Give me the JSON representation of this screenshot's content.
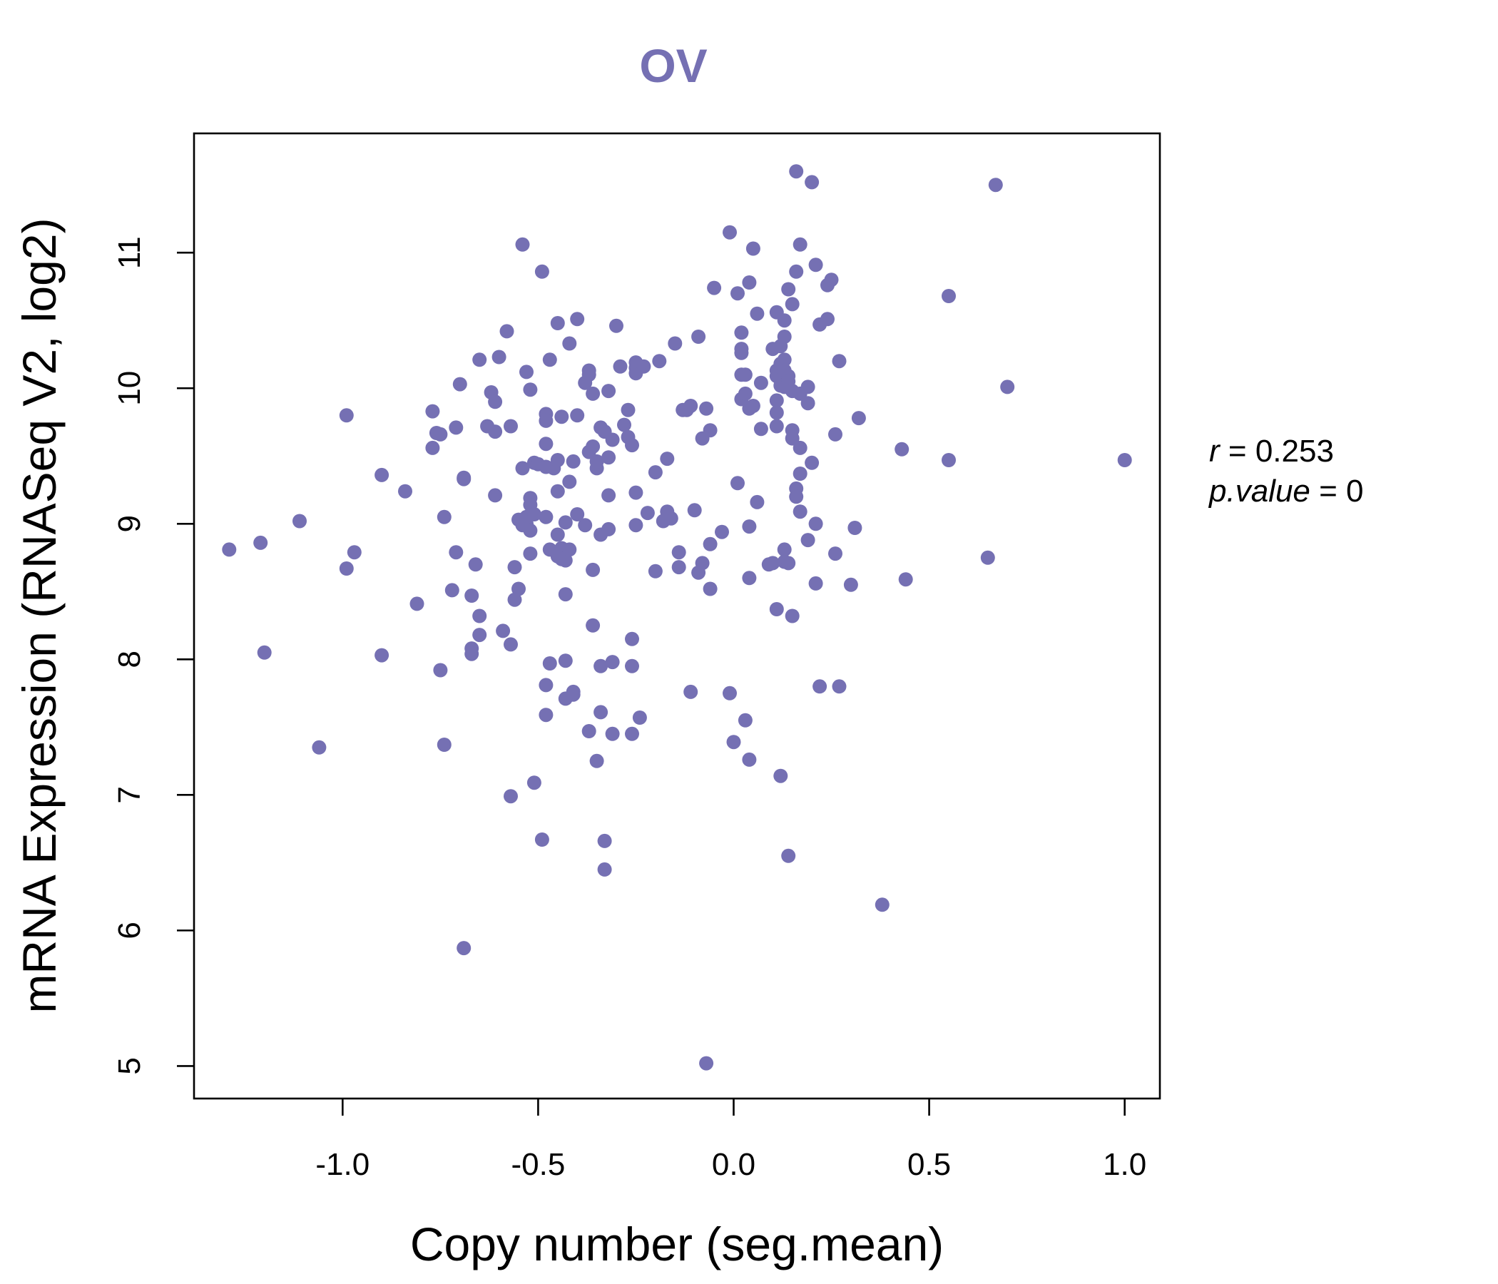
{
  "chart_data": {
    "type": "scatter",
    "title": "OV",
    "xlabel": "Copy number (seg.mean)",
    "ylabel": "mRNA Expression (RNASeq V2, log2)",
    "xlim": [
      -1.38,
      1.09
    ],
    "ylim": [
      4.76,
      11.88
    ],
    "xticks": [
      -1.0,
      -0.5,
      0.0,
      0.5,
      1.0
    ],
    "xtick_labels": [
      "-1.0",
      "-0.5",
      "0.0",
      "0.5",
      "1.0"
    ],
    "yticks": [
      5,
      6,
      7,
      8,
      9,
      10,
      11
    ],
    "ytick_labels": [
      "5",
      "6",
      "7",
      "8",
      "9",
      "10",
      "11"
    ],
    "grid": false,
    "legend": "none",
    "point_color": "#7570b3",
    "stats": {
      "r_symbol": "r",
      "r_value": "0.253",
      "p_symbol": "p.value",
      "p_value": "0"
    },
    "points": [
      [
        -1.29,
        8.81
      ],
      [
        -1.21,
        8.86
      ],
      [
        -1.2,
        8.05
      ],
      [
        -1.11,
        9.02
      ],
      [
        -1.06,
        7.35
      ],
      [
        -0.99,
        8.67
      ],
      [
        -0.99,
        9.8
      ],
      [
        -0.97,
        8.79
      ],
      [
        -0.9,
        9.36
      ],
      [
        -0.9,
        8.03
      ],
      [
        -0.84,
        9.24
      ],
      [
        -0.81,
        8.41
      ],
      [
        -0.77,
        9.83
      ],
      [
        -0.77,
        9.56
      ],
      [
        -0.76,
        9.67
      ],
      [
        -0.75,
        7.92
      ],
      [
        -0.75,
        9.66
      ],
      [
        -0.74,
        9.05
      ],
      [
        -0.74,
        7.37
      ],
      [
        -0.72,
        8.51
      ],
      [
        -0.71,
        9.71
      ],
      [
        -0.71,
        8.79
      ],
      [
        -0.7,
        10.03
      ],
      [
        -0.69,
        9.33
      ],
      [
        -0.69,
        9.34
      ],
      [
        -0.69,
        5.87
      ],
      [
        -0.67,
        8.47
      ],
      [
        -0.67,
        8.04
      ],
      [
        -0.67,
        8.08
      ],
      [
        -0.66,
        8.7
      ],
      [
        -0.65,
        8.18
      ],
      [
        -0.65,
        8.32
      ],
      [
        -0.65,
        10.21
      ],
      [
        -0.63,
        9.72
      ],
      [
        -0.62,
        9.97
      ],
      [
        -0.61,
        9.68
      ],
      [
        -0.61,
        9.21
      ],
      [
        -0.61,
        9.9
      ],
      [
        -0.6,
        10.23
      ],
      [
        -0.59,
        8.21
      ],
      [
        -0.58,
        10.42
      ],
      [
        -0.57,
        6.99
      ],
      [
        -0.57,
        8.11
      ],
      [
        -0.57,
        9.72
      ],
      [
        -0.56,
        8.68
      ],
      [
        -0.56,
        8.44
      ],
      [
        -0.55,
        8.52
      ],
      [
        -0.55,
        9.03
      ],
      [
        -0.54,
        11.06
      ],
      [
        -0.54,
        9.41
      ],
      [
        -0.54,
        8.99
      ],
      [
        -0.53,
        9.0
      ],
      [
        -0.53,
        9.05
      ],
      [
        -0.53,
        10.12
      ],
      [
        -0.52,
        8.78
      ],
      [
        -0.52,
        9.99
      ],
      [
        -0.52,
        8.95
      ],
      [
        -0.52,
        9.19
      ],
      [
        -0.52,
        9.14
      ],
      [
        -0.51,
        9.45
      ],
      [
        -0.51,
        9.07
      ],
      [
        -0.51,
        7.09
      ],
      [
        -0.5,
        9.44
      ],
      [
        -0.49,
        6.67
      ],
      [
        -0.49,
        10.86
      ],
      [
        -0.48,
        9.59
      ],
      [
        -0.48,
        9.81
      ],
      [
        -0.48,
        9.76
      ],
      [
        -0.48,
        9.42
      ],
      [
        -0.48,
        7.81
      ],
      [
        -0.48,
        7.59
      ],
      [
        -0.48,
        9.05
      ],
      [
        -0.47,
        10.21
      ],
      [
        -0.47,
        8.81
      ],
      [
        -0.47,
        7.97
      ],
      [
        -0.46,
        9.41
      ],
      [
        -0.45,
        10.48
      ],
      [
        -0.45,
        9.24
      ],
      [
        -0.45,
        8.92
      ],
      [
        -0.45,
        8.76
      ],
      [
        -0.45,
        9.47
      ],
      [
        -0.44,
        9.79
      ],
      [
        -0.44,
        8.82
      ],
      [
        -0.44,
        8.74
      ],
      [
        -0.43,
        9.01
      ],
      [
        -0.43,
        7.99
      ],
      [
        -0.43,
        7.71
      ],
      [
        -0.43,
        8.48
      ],
      [
        -0.43,
        8.73
      ],
      [
        -0.42,
        10.33
      ],
      [
        -0.42,
        9.31
      ],
      [
        -0.42,
        8.81
      ],
      [
        -0.41,
        9.46
      ],
      [
        -0.41,
        7.74
      ],
      [
        -0.41,
        7.76
      ],
      [
        -0.4,
        9.8
      ],
      [
        -0.4,
        9.07
      ],
      [
        -0.4,
        10.51
      ],
      [
        -0.38,
        10.04
      ],
      [
        -0.38,
        8.99
      ],
      [
        -0.37,
        10.13
      ],
      [
        -0.37,
        10.1
      ],
      [
        -0.37,
        9.53
      ],
      [
        -0.37,
        7.47
      ],
      [
        -0.36,
        8.25
      ],
      [
        -0.36,
        8.66
      ],
      [
        -0.36,
        9.96
      ],
      [
        -0.36,
        9.57
      ],
      [
        -0.35,
        7.25
      ],
      [
        -0.35,
        9.41
      ],
      [
        -0.35,
        9.46
      ],
      [
        -0.34,
        9.71
      ],
      [
        -0.34,
        8.92
      ],
      [
        -0.34,
        7.95
      ],
      [
        -0.34,
        7.61
      ],
      [
        -0.33,
        9.68
      ],
      [
        -0.33,
        6.45
      ],
      [
        -0.33,
        6.66
      ],
      [
        -0.32,
        9.98
      ],
      [
        -0.32,
        9.49
      ],
      [
        -0.32,
        9.21
      ],
      [
        -0.32,
        8.96
      ],
      [
        -0.31,
        9.62
      ],
      [
        -0.31,
        7.98
      ],
      [
        -0.31,
        7.45
      ],
      [
        -0.3,
        10.46
      ],
      [
        -0.29,
        10.16
      ],
      [
        -0.28,
        9.73
      ],
      [
        -0.27,
        9.84
      ],
      [
        -0.27,
        9.64
      ],
      [
        -0.26,
        9.58
      ],
      [
        -0.26,
        8.15
      ],
      [
        -0.26,
        7.95
      ],
      [
        -0.26,
        7.45
      ],
      [
        -0.25,
        10.15
      ],
      [
        -0.25,
        10.19
      ],
      [
        -0.25,
        10.11
      ],
      [
        -0.25,
        9.23
      ],
      [
        -0.25,
        8.99
      ],
      [
        -0.24,
        7.57
      ],
      [
        -0.23,
        10.16
      ],
      [
        -0.22,
        9.08
      ],
      [
        -0.2,
        9.38
      ],
      [
        -0.2,
        8.65
      ],
      [
        -0.19,
        10.2
      ],
      [
        -0.18,
        9.02
      ],
      [
        -0.17,
        9.48
      ],
      [
        -0.17,
        9.09
      ],
      [
        -0.16,
        9.04
      ],
      [
        -0.15,
        10.33
      ],
      [
        -0.14,
        8.79
      ],
      [
        -0.14,
        8.68
      ],
      [
        -0.13,
        9.84
      ],
      [
        -0.12,
        9.84
      ],
      [
        -0.11,
        9.87
      ],
      [
        -0.11,
        7.76
      ],
      [
        -0.1,
        9.1
      ],
      [
        -0.09,
        10.38
      ],
      [
        -0.09,
        8.64
      ],
      [
        -0.08,
        9.63
      ],
      [
        -0.08,
        8.71
      ],
      [
        -0.07,
        9.85
      ],
      [
        -0.07,
        5.02
      ],
      [
        -0.06,
        9.69
      ],
      [
        -0.06,
        8.85
      ],
      [
        -0.06,
        8.52
      ],
      [
        -0.05,
        10.74
      ],
      [
        -0.03,
        8.94
      ],
      [
        -0.01,
        7.75
      ],
      [
        -0.01,
        11.15
      ],
      [
        0.0,
        7.39
      ],
      [
        0.01,
        9.3
      ],
      [
        0.01,
        10.7
      ],
      [
        0.02,
        10.1
      ],
      [
        0.02,
        10.26
      ],
      [
        0.02,
        10.29
      ],
      [
        0.02,
        10.41
      ],
      [
        0.02,
        9.92
      ],
      [
        0.03,
        10.1
      ],
      [
        0.03,
        9.96
      ],
      [
        0.03,
        7.55
      ],
      [
        0.04,
        8.98
      ],
      [
        0.04,
        8.6
      ],
      [
        0.04,
        10.78
      ],
      [
        0.04,
        7.26
      ],
      [
        0.04,
        9.85
      ],
      [
        0.05,
        11.03
      ],
      [
        0.05,
        9.87
      ],
      [
        0.06,
        9.16
      ],
      [
        0.06,
        10.55
      ],
      [
        0.07,
        10.04
      ],
      [
        0.07,
        9.7
      ],
      [
        0.09,
        8.7
      ],
      [
        0.1,
        8.71
      ],
      [
        0.1,
        10.29
      ],
      [
        0.11,
        10.13
      ],
      [
        0.11,
        10.09
      ],
      [
        0.11,
        9.91
      ],
      [
        0.11,
        9.82
      ],
      [
        0.11,
        9.72
      ],
      [
        0.11,
        10.56
      ],
      [
        0.11,
        8.37
      ],
      [
        0.12,
        10.18
      ],
      [
        0.12,
        10.02
      ],
      [
        0.12,
        7.14
      ],
      [
        0.12,
        10.31
      ],
      [
        0.13,
        10.38
      ],
      [
        0.13,
        10.21
      ],
      [
        0.13,
        10.13
      ],
      [
        0.13,
        10.01
      ],
      [
        0.13,
        10.5
      ],
      [
        0.13,
        8.81
      ],
      [
        0.13,
        8.72
      ],
      [
        0.14,
        10.73
      ],
      [
        0.14,
        10.09
      ],
      [
        0.14,
        10.05
      ],
      [
        0.14,
        6.55
      ],
      [
        0.14,
        8.71
      ],
      [
        0.15,
        9.98
      ],
      [
        0.15,
        9.63
      ],
      [
        0.15,
        10.62
      ],
      [
        0.15,
        8.32
      ],
      [
        0.15,
        9.69
      ],
      [
        0.16,
        11.6
      ],
      [
        0.16,
        9.26
      ],
      [
        0.16,
        9.2
      ],
      [
        0.16,
        10.86
      ],
      [
        0.17,
        9.96
      ],
      [
        0.17,
        9.37
      ],
      [
        0.17,
        9.56
      ],
      [
        0.17,
        11.06
      ],
      [
        0.17,
        9.09
      ],
      [
        0.19,
        9.89
      ],
      [
        0.19,
        10.01
      ],
      [
        0.19,
        8.88
      ],
      [
        0.2,
        9.45
      ],
      [
        0.2,
        11.52
      ],
      [
        0.21,
        9.0
      ],
      [
        0.21,
        8.56
      ],
      [
        0.21,
        10.91
      ],
      [
        0.22,
        10.47
      ],
      [
        0.22,
        7.8
      ],
      [
        0.24,
        10.51
      ],
      [
        0.24,
        10.76
      ],
      [
        0.25,
        10.8
      ],
      [
        0.26,
        9.66
      ],
      [
        0.26,
        8.78
      ],
      [
        0.27,
        10.2
      ],
      [
        0.27,
        7.8
      ],
      [
        0.3,
        8.55
      ],
      [
        0.31,
        8.97
      ],
      [
        0.32,
        9.78
      ],
      [
        0.38,
        6.19
      ],
      [
        0.43,
        9.55
      ],
      [
        0.44,
        8.59
      ],
      [
        0.55,
        9.47
      ],
      [
        0.55,
        10.68
      ],
      [
        0.65,
        8.75
      ],
      [
        0.67,
        11.5
      ],
      [
        0.7,
        10.01
      ],
      [
        1.0,
        9.47
      ]
    ]
  }
}
